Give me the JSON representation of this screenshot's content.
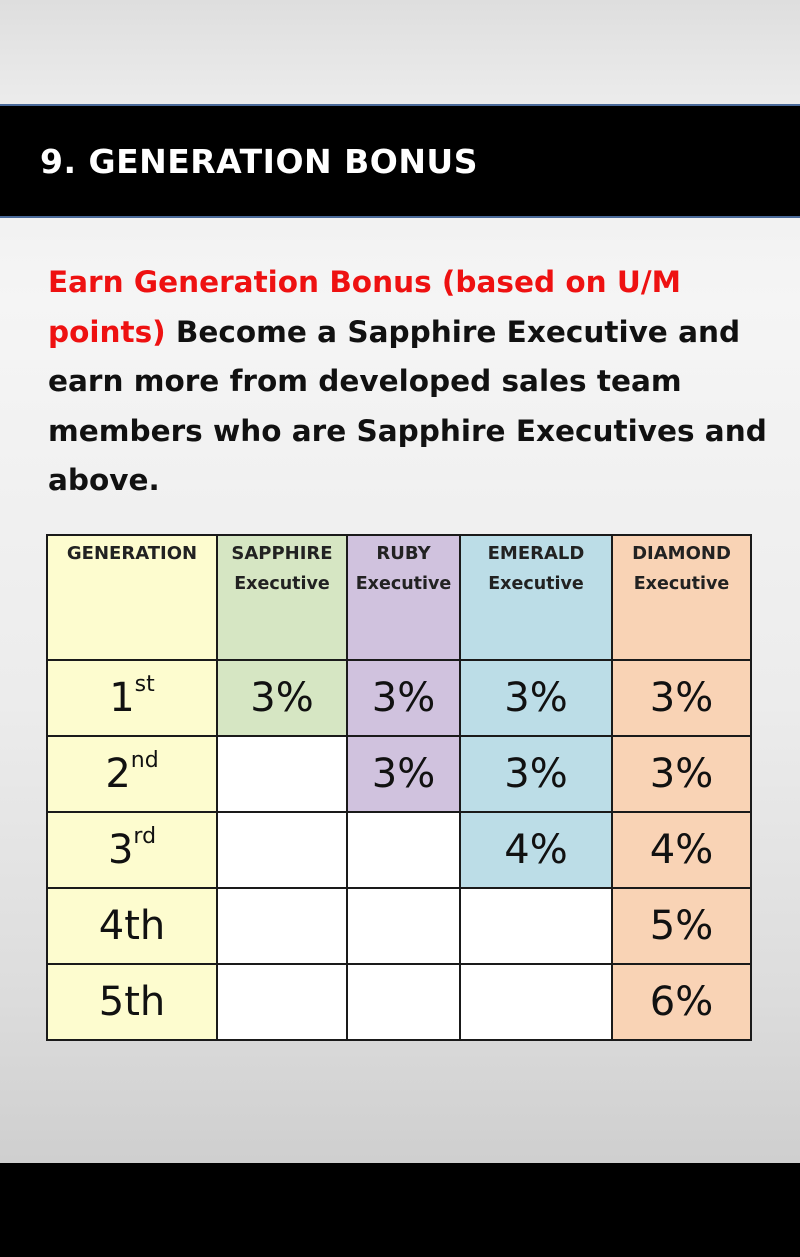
{
  "slide": {
    "title": "9. GENERATION BONUS",
    "intro_highlight": "Earn Generation Bonus (based on U/M points)",
    "intro_rest": " Become a Sapphire Executive and earn more from developed sales team members who are Sapphire Executives and above."
  },
  "table": {
    "headers": [
      {
        "top": "GENERATION",
        "bottom": ""
      },
      {
        "top": "SAPPHIRE",
        "bottom": "Executive"
      },
      {
        "top": "RUBY",
        "bottom": "Executive"
      },
      {
        "top": "EMERALD",
        "bottom": "Executive"
      },
      {
        "top": "DIAMOND",
        "bottom": "Executive"
      }
    ],
    "rows": [
      {
        "gen_num": "1",
        "gen_suffix": "st",
        "values": [
          "3%",
          "3%",
          "3%",
          "3%"
        ]
      },
      {
        "gen_num": "2",
        "gen_suffix": "nd",
        "values": [
          "",
          "3%",
          "3%",
          "3%"
        ]
      },
      {
        "gen_num": "3",
        "gen_suffix": "rd",
        "values": [
          "",
          "",
          "4%",
          "4%"
        ]
      },
      {
        "gen_num": "4th",
        "gen_suffix": "",
        "values": [
          "",
          "",
          "",
          "5%"
        ]
      },
      {
        "gen_num": "5th",
        "gen_suffix": "",
        "values": [
          "",
          "",
          "",
          "6%"
        ]
      }
    ]
  },
  "colors": {
    "title_band": "#000000",
    "highlight_text": "#ee1111",
    "generation_col": "#fdfccf",
    "sapphire": "#d6e6c3",
    "ruby": "#d0c2de",
    "emerald": "#bcdde7",
    "diamond": "#f9d3b5"
  }
}
